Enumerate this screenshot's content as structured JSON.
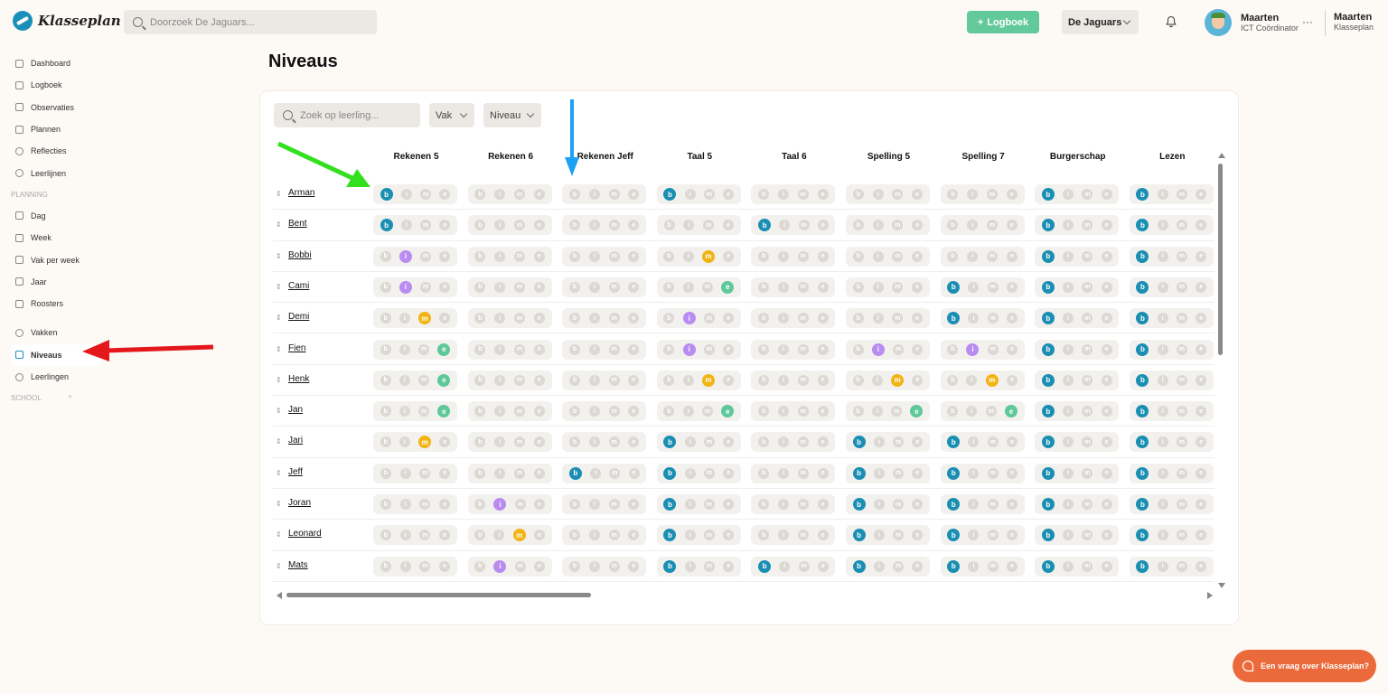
{
  "app": {
    "name": "Klasseplan"
  },
  "search": {
    "placeholder": "Doorzoek De Jaguars..."
  },
  "header": {
    "logboek_label": "Logboek",
    "class_name": "De Jaguars",
    "user_name": "Maarten",
    "user_role": "ICT Coördinator",
    "more": "···",
    "org_user": "Maarten",
    "org_name": "Klasseplan"
  },
  "sidebar": {
    "items": [
      {
        "label": "Dashboard",
        "icon": "home-icon"
      },
      {
        "label": "Logboek",
        "icon": "book-icon"
      },
      {
        "label": "Observaties",
        "icon": "star-icon"
      },
      {
        "label": "Plannen",
        "icon": "calendar-icon"
      },
      {
        "label": "Reflecties",
        "icon": "bulb-icon"
      },
      {
        "label": "Leerlijnen",
        "icon": "target-icon"
      }
    ],
    "planning_heading": "PLANNING",
    "planning_items": [
      {
        "label": "Dag",
        "icon": "calendar-day-icon"
      },
      {
        "label": "Week",
        "icon": "calendar-week-icon"
      },
      {
        "label": "Vak per week",
        "icon": "calendar-subject-icon"
      },
      {
        "label": "Jaar",
        "icon": "calendar-year-icon"
      },
      {
        "label": "Roosters",
        "icon": "grid-icon"
      }
    ],
    "more_items": [
      {
        "label": "Vakken",
        "icon": "people-icon"
      },
      {
        "label": "Niveaus",
        "icon": "database-icon",
        "active": true
      },
      {
        "label": "Leerlingen",
        "icon": "students-icon"
      }
    ],
    "school_heading": "SCHOOL"
  },
  "page": {
    "title": "Niveaus"
  },
  "filters": {
    "student_search_placeholder": "Zoek op leerling...",
    "subject_label": "Vak",
    "level_label": "Niveau"
  },
  "columns": [
    "Rekenen 5",
    "Rekenen 6",
    "Rekenen Jeff",
    "Taal 5",
    "Taal 6",
    "Spelling 5",
    "Spelling 7",
    "Burgerschap",
    "Lezen"
  ],
  "level_letters": [
    "b",
    "i",
    "m",
    "e"
  ],
  "students": [
    {
      "name": "Arman",
      "levels": [
        "b",
        "",
        "",
        "b",
        "",
        "",
        "",
        "b",
        "b"
      ]
    },
    {
      "name": "Bent",
      "levels": [
        "b",
        "",
        "",
        "",
        "b",
        "",
        "",
        "b",
        "b"
      ]
    },
    {
      "name": "Bobbi",
      "levels": [
        "i",
        "",
        "",
        "m",
        "",
        "",
        "",
        "b",
        "b"
      ]
    },
    {
      "name": "Cami",
      "levels": [
        "i",
        "",
        "",
        "e",
        "",
        "",
        "b",
        "b",
        "b"
      ]
    },
    {
      "name": "Demi",
      "levels": [
        "m",
        "",
        "",
        "i",
        "",
        "",
        "b",
        "b",
        "b"
      ]
    },
    {
      "name": "Fien",
      "levels": [
        "e",
        "",
        "",
        "i",
        "",
        "i",
        "i",
        "b",
        "b"
      ]
    },
    {
      "name": "Henk",
      "levels": [
        "e",
        "",
        "",
        "m",
        "",
        "m",
        "m",
        "b",
        "b"
      ]
    },
    {
      "name": "Jan",
      "levels": [
        "e",
        "",
        "",
        "e",
        "",
        "e",
        "e",
        "b",
        "b"
      ]
    },
    {
      "name": "Jari",
      "levels": [
        "m",
        "",
        "",
        "b",
        "",
        "b",
        "b",
        "b",
        "b"
      ]
    },
    {
      "name": "Jeff",
      "levels": [
        "",
        "",
        "b",
        "b",
        "",
        "b",
        "b",
        "b",
        "b"
      ]
    },
    {
      "name": "Joran",
      "levels": [
        "",
        "i",
        "",
        "b",
        "",
        "b",
        "b",
        "b",
        "b"
      ]
    },
    {
      "name": "Leonard",
      "levels": [
        "",
        "m",
        "",
        "b",
        "",
        "b",
        "b",
        "b",
        "b"
      ]
    },
    {
      "name": "Mats",
      "levels": [
        "",
        "i",
        "",
        "b",
        "b",
        "b",
        "b",
        "b",
        "b"
      ]
    }
  ],
  "help": {
    "label": "Een vraag over Klasseplan?"
  },
  "colors": {
    "accent": "#1b8fb3",
    "level_b": "#1b8fb3",
    "level_i": "#b88cf0",
    "level_m": "#f2b414",
    "level_e": "#5fc89a",
    "logboek_button": "#62c99a",
    "help_button": "#ea6a3c",
    "annotation_green": "#33e01e",
    "annotation_blue": "#1da1f2",
    "annotation_red": "#e4171a"
  }
}
